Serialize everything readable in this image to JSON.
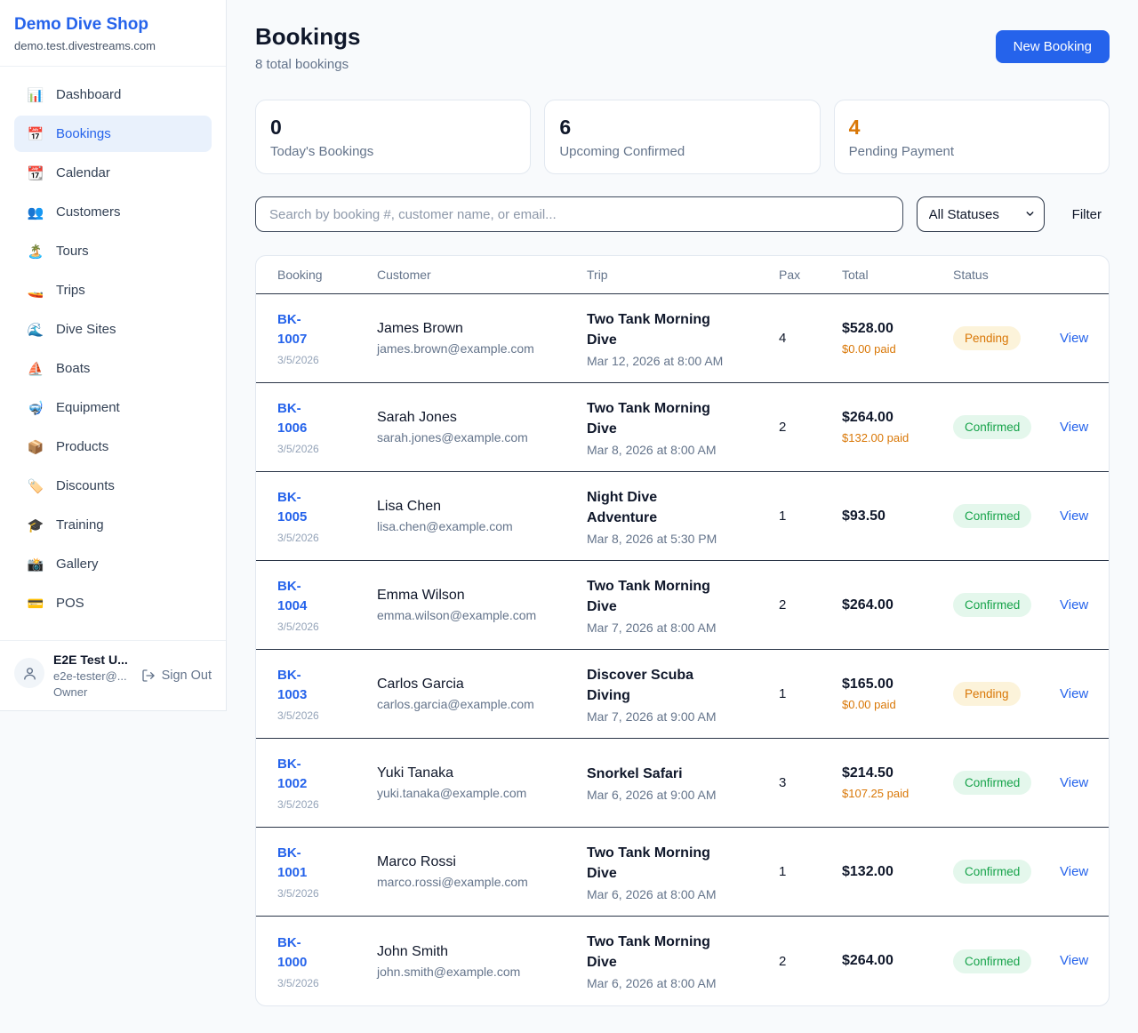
{
  "colors": {
    "primary_blue": "#2563EB",
    "accent_orange": "#D97706",
    "success_green": "#16A34A",
    "page_bg": "#F8FAFC"
  },
  "sidebar": {
    "brand": {
      "name": "Demo Dive Shop",
      "domain": "demo.test.divestreams.com"
    },
    "items": [
      {
        "icon": "📊",
        "label": "Dashboard",
        "active": false
      },
      {
        "icon": "📅",
        "label": "Bookings",
        "active": true
      },
      {
        "icon": "📆",
        "label": "Calendar",
        "active": false
      },
      {
        "icon": "👥",
        "label": "Customers",
        "active": false
      },
      {
        "icon": "🏝️",
        "label": "Tours",
        "active": false
      },
      {
        "icon": "🚤",
        "label": "Trips",
        "active": false
      },
      {
        "icon": "🌊",
        "label": "Dive Sites",
        "active": false
      },
      {
        "icon": "⛵",
        "label": "Boats",
        "active": false
      },
      {
        "icon": "🤿",
        "label": "Equipment",
        "active": false
      },
      {
        "icon": "📦",
        "label": "Products",
        "active": false
      },
      {
        "icon": "🏷️",
        "label": "Discounts",
        "active": false
      },
      {
        "icon": "🎓",
        "label": "Training",
        "active": false
      },
      {
        "icon": "📸",
        "label": "Gallery",
        "active": false
      },
      {
        "icon": "💳",
        "label": "POS",
        "active": false
      }
    ],
    "user": {
      "name": "E2E Test U...",
      "email": "e2e-tester@...",
      "role": "Owner",
      "sign_out_label": "Sign Out"
    }
  },
  "header": {
    "title": "Bookings",
    "subtitle": "8 total bookings",
    "new_booking_label": "New Booking"
  },
  "stats": [
    {
      "value": "0",
      "label": "Today's Bookings",
      "accent": false
    },
    {
      "value": "6",
      "label": "Upcoming Confirmed",
      "accent": false
    },
    {
      "value": "4",
      "label": "Pending Payment",
      "accent": true
    }
  ],
  "filters": {
    "search_placeholder": "Search by booking #, customer name, or email...",
    "status_selected": "All Statuses",
    "filter_label": "Filter"
  },
  "table": {
    "headers": [
      "Booking",
      "Customer",
      "Trip",
      "Pax",
      "Total",
      "Status"
    ],
    "view_label": "View",
    "rows": [
      {
        "id": "BK-1007",
        "date": "3/5/2026",
        "customer": "James Brown",
        "email": "james.brown@example.com",
        "trip": "Two Tank Morning Dive",
        "trip_datetime": "Mar 12, 2026 at 8:00 AM",
        "pax": "4",
        "total": "$528.00",
        "paid": "$0.00 paid",
        "status": "Pending"
      },
      {
        "id": "BK-1006",
        "date": "3/5/2026",
        "customer": "Sarah Jones",
        "email": "sarah.jones@example.com",
        "trip": "Two Tank Morning Dive",
        "trip_datetime": "Mar 8, 2026 at 8:00 AM",
        "pax": "2",
        "total": "$264.00",
        "paid": "$132.00 paid",
        "status": "Confirmed"
      },
      {
        "id": "BK-1005",
        "date": "3/5/2026",
        "customer": "Lisa Chen",
        "email": "lisa.chen@example.com",
        "trip": "Night Dive Adventure",
        "trip_datetime": "Mar 8, 2026 at 5:30 PM",
        "pax": "1",
        "total": "$93.50",
        "paid": null,
        "status": "Confirmed"
      },
      {
        "id": "BK-1004",
        "date": "3/5/2026",
        "customer": "Emma Wilson",
        "email": "emma.wilson@example.com",
        "trip": "Two Tank Morning Dive",
        "trip_datetime": "Mar 7, 2026 at 8:00 AM",
        "pax": "2",
        "total": "$264.00",
        "paid": null,
        "status": "Confirmed"
      },
      {
        "id": "BK-1003",
        "date": "3/5/2026",
        "customer": "Carlos Garcia",
        "email": "carlos.garcia@example.com",
        "trip": "Discover Scuba Diving",
        "trip_datetime": "Mar 7, 2026 at 9:00 AM",
        "pax": "1",
        "total": "$165.00",
        "paid": "$0.00 paid",
        "status": "Pending"
      },
      {
        "id": "BK-1002",
        "date": "3/5/2026",
        "customer": "Yuki Tanaka",
        "email": "yuki.tanaka@example.com",
        "trip": "Snorkel Safari",
        "trip_datetime": "Mar 6, 2026 at 9:00 AM",
        "pax": "3",
        "total": "$214.50",
        "paid": "$107.25 paid",
        "status": "Confirmed"
      },
      {
        "id": "BK-1001",
        "date": "3/5/2026",
        "customer": "Marco Rossi",
        "email": "marco.rossi@example.com",
        "trip": "Two Tank Morning Dive",
        "trip_datetime": "Mar 6, 2026 at 8:00 AM",
        "pax": "1",
        "total": "$132.00",
        "paid": null,
        "status": "Confirmed"
      },
      {
        "id": "BK-1000",
        "date": "3/5/2026",
        "customer": "John Smith",
        "email": "john.smith@example.com",
        "trip": "Two Tank Morning Dive",
        "trip_datetime": "Mar 6, 2026 at 8:00 AM",
        "pax": "2",
        "total": "$264.00",
        "paid": null,
        "status": "Confirmed"
      }
    ]
  }
}
